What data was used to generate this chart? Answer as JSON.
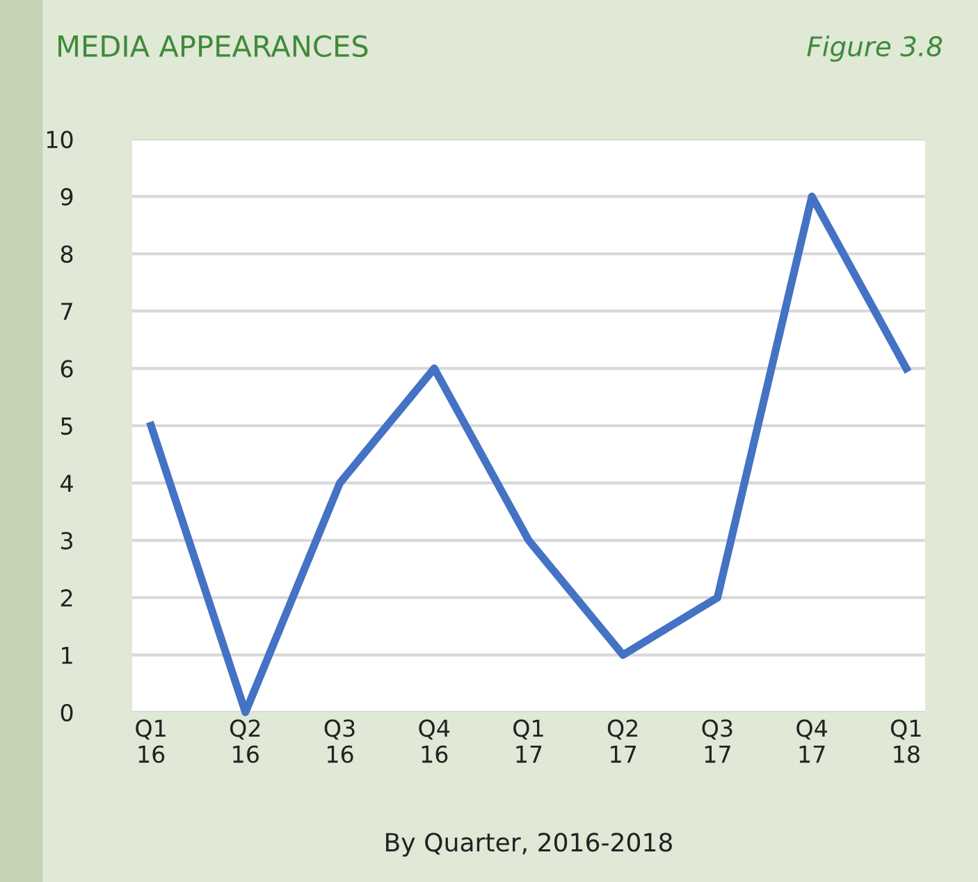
{
  "chart_data": {
    "type": "line",
    "title": "MEDIA APPEARANCES",
    "subtitle": "Figure 3.8",
    "xlabel": "By Quarter, 2016-2018",
    "categories": [
      "Q1\n16",
      "Q2\n16",
      "Q3\n16",
      "Q4\n16",
      "Q1\n17",
      "Q2\n17",
      "Q3\n17",
      "Q4\n17",
      "Q1\n18"
    ],
    "series": [
      {
        "color": "#4472c4",
        "values": [
          5,
          0,
          4,
          6,
          3,
          1,
          2,
          9,
          6
        ]
      }
    ],
    "ylim": [
      0,
      10
    ],
    "yticks": [
      0,
      1,
      2,
      3,
      4,
      5,
      6,
      7,
      8,
      9,
      10
    ],
    "grid": "y",
    "legend": false,
    "marker": "none",
    "line_style": "solid"
  }
}
